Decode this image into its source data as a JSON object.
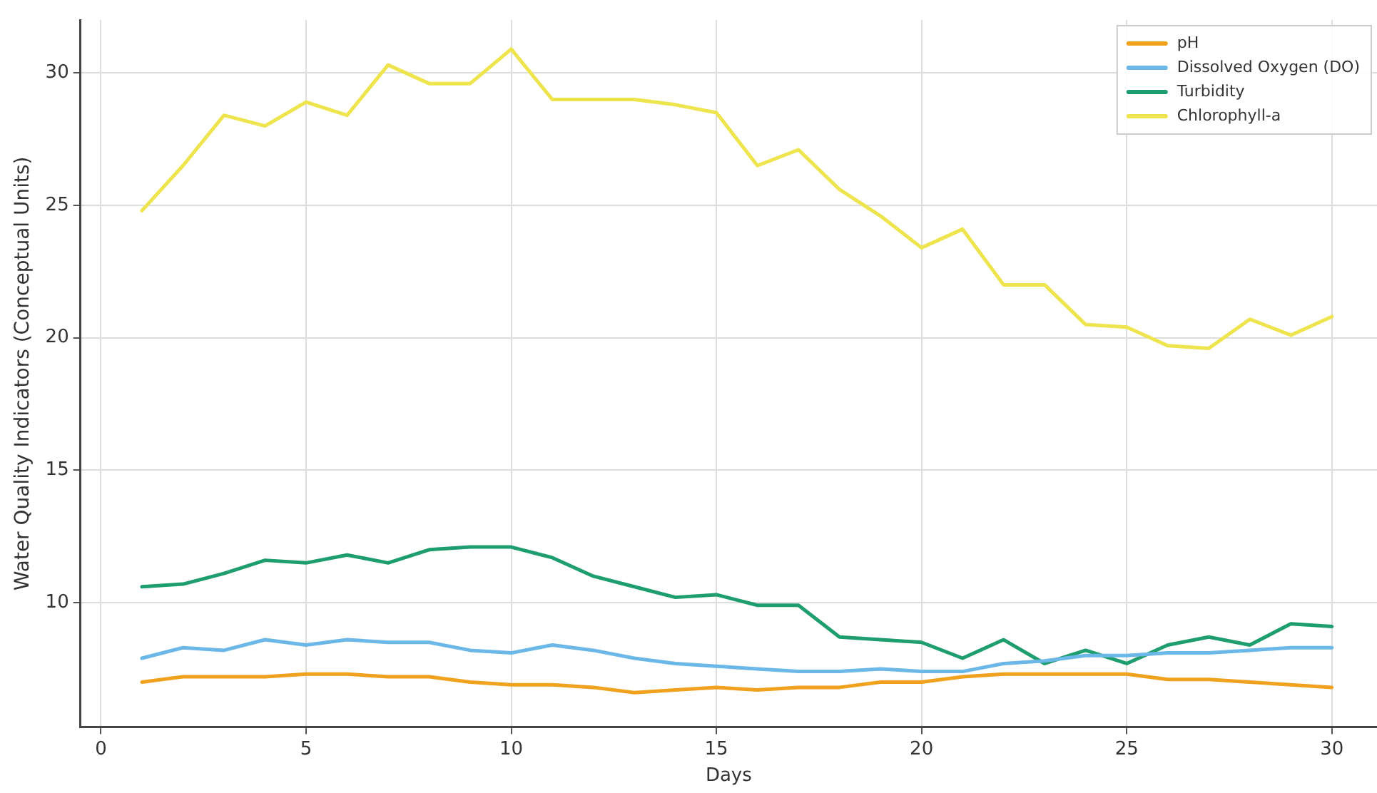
{
  "chart_data": {
    "type": "line",
    "xlabel": "Days",
    "ylabel": "Water Quality Indicators (Conceptual Units)",
    "x": [
      1,
      2,
      3,
      4,
      5,
      6,
      7,
      8,
      9,
      10,
      11,
      12,
      13,
      14,
      15,
      16,
      17,
      18,
      19,
      20,
      21,
      22,
      23,
      24,
      25,
      26,
      27,
      28,
      29,
      30
    ],
    "series": [
      {
        "name": "pH",
        "color": "#f0a21e",
        "values": [
          7.0,
          7.2,
          7.2,
          7.2,
          7.3,
          7.3,
          7.2,
          7.2,
          7.0,
          6.9,
          6.9,
          6.8,
          6.6,
          6.7,
          6.8,
          6.7,
          6.8,
          6.8,
          7.0,
          7.0,
          7.2,
          7.3,
          7.3,
          7.3,
          7.3,
          7.1,
          7.1,
          7.0,
          6.9,
          6.8
        ]
      },
      {
        "name": "Dissolved Oxygen (DO)",
        "color": "#6bb8e8",
        "values": [
          7.9,
          8.3,
          8.2,
          8.6,
          8.4,
          8.6,
          8.5,
          8.5,
          8.2,
          8.1,
          8.4,
          8.2,
          7.9,
          7.7,
          7.6,
          7.5,
          7.4,
          7.4,
          7.5,
          7.4,
          7.4,
          7.7,
          7.8,
          8.0,
          8.0,
          8.1,
          8.1,
          8.2,
          8.3,
          8.3
        ]
      },
      {
        "name": "Turbidity",
        "color": "#1e9e6e",
        "values": [
          10.6,
          10.7,
          11.1,
          11.6,
          11.5,
          11.8,
          11.5,
          12.0,
          12.1,
          12.1,
          11.7,
          11.0,
          10.6,
          10.2,
          10.3,
          9.9,
          9.9,
          8.7,
          8.6,
          8.5,
          7.9,
          8.6,
          7.7,
          8.2,
          7.7,
          8.4,
          8.7,
          8.4,
          9.2,
          9.1
        ]
      },
      {
        "name": "Chlorophyll-a",
        "color": "#ede44e",
        "values": [
          24.8,
          26.5,
          28.4,
          28.0,
          28.9,
          28.4,
          30.3,
          29.6,
          29.6,
          30.9,
          29.0,
          29.0,
          29.0,
          28.8,
          28.5,
          26.5,
          27.1,
          25.6,
          24.6,
          23.4,
          24.1,
          22.0,
          22.0,
          20.5,
          20.4,
          19.7,
          19.6,
          20.7,
          20.1,
          20.8
        ]
      }
    ],
    "xlim": [
      -0.5,
      31.1
    ],
    "xticks": [
      0,
      5,
      10,
      15,
      20,
      25,
      30
    ],
    "ylim": [
      5.3,
      32
    ],
    "yticks": [
      10,
      15,
      20,
      25,
      30
    ],
    "grid": true,
    "legend": "top right",
    "marker": "none",
    "line_style": "solid"
  }
}
